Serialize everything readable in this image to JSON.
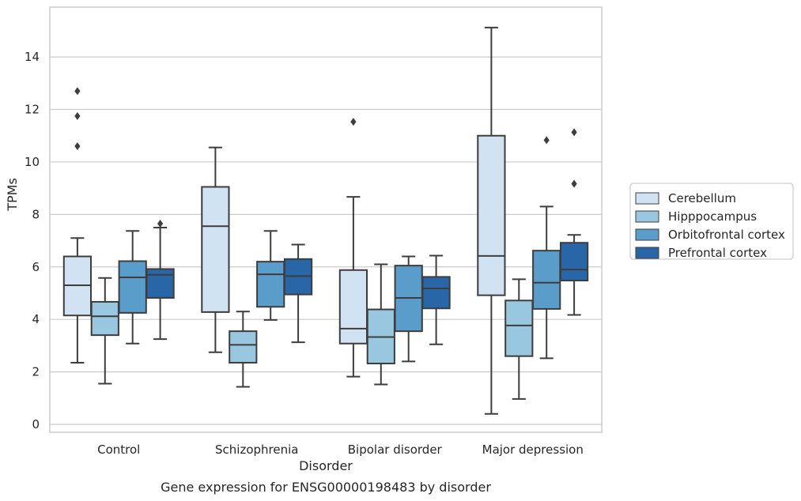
{
  "chart_data": {
    "type": "box",
    "caption": "Gene expression for ENSG00000198483 by disorder",
    "xlabel": "Disorder",
    "ylabel": "TPMs",
    "ylim": [
      -0.3,
      15.9
    ],
    "yticks": [
      0,
      2,
      4,
      6,
      8,
      10,
      12,
      14
    ],
    "grid": "horizontal",
    "legend_position": "right",
    "categories": [
      "Control",
      "Schizophrenia",
      "Bipolar disorder",
      "Major depression"
    ],
    "series": [
      {
        "name": "Cerebellum",
        "color": "#d1e2f2",
        "boxes": [
          {
            "whislo": 2.35,
            "q1": 4.15,
            "med": 5.3,
            "q3": 6.4,
            "whishi": 7.1,
            "fliers": [
              10.6,
              11.75,
              12.7
            ]
          },
          {
            "whislo": 2.75,
            "q1": 4.28,
            "med": 7.55,
            "q3": 9.05,
            "whishi": 10.55,
            "fliers": []
          },
          {
            "whislo": 1.82,
            "q1": 3.08,
            "med": 3.65,
            "q3": 5.88,
            "whishi": 8.67,
            "fliers": [
              11.53
            ]
          },
          {
            "whislo": 0.4,
            "q1": 4.92,
            "med": 6.42,
            "q3": 11.0,
            "whishi": 15.12,
            "fliers": []
          }
        ]
      },
      {
        "name": "Hipppocampus",
        "color": "#9ac7e0",
        "boxes": [
          {
            "whislo": 1.55,
            "q1": 3.4,
            "med": 4.12,
            "q3": 4.67,
            "whishi": 5.58,
            "fliers": []
          },
          {
            "whislo": 1.43,
            "q1": 2.35,
            "med": 3.03,
            "q3": 3.55,
            "whishi": 4.3,
            "fliers": []
          },
          {
            "whislo": 1.52,
            "q1": 2.32,
            "med": 3.33,
            "q3": 4.38,
            "whishi": 6.1,
            "fliers": []
          },
          {
            "whislo": 0.97,
            "q1": 2.6,
            "med": 3.77,
            "q3": 4.72,
            "whishi": 5.53,
            "fliers": []
          }
        ]
      },
      {
        "name": "Orbitofrontal cortex",
        "color": "#5a9dcb",
        "boxes": [
          {
            "whislo": 3.08,
            "q1": 4.25,
            "med": 5.6,
            "q3": 6.22,
            "whishi": 7.37,
            "fliers": []
          },
          {
            "whislo": 3.98,
            "q1": 4.48,
            "med": 5.72,
            "q3": 6.2,
            "whishi": 7.37,
            "fliers": []
          },
          {
            "whislo": 2.4,
            "q1": 3.55,
            "med": 4.82,
            "q3": 6.05,
            "whishi": 6.4,
            "fliers": []
          },
          {
            "whislo": 2.52,
            "q1": 4.4,
            "med": 5.4,
            "q3": 6.62,
            "whishi": 8.3,
            "fliers": [
              10.83
            ]
          }
        ]
      },
      {
        "name": "Prefrontal cortex",
        "color": "#2866a8",
        "boxes": [
          {
            "whislo": 3.25,
            "q1": 4.82,
            "med": 5.7,
            "q3": 5.92,
            "whishi": 7.5,
            "fliers": [
              7.65
            ]
          },
          {
            "whislo": 3.13,
            "q1": 4.95,
            "med": 5.65,
            "q3": 6.3,
            "whishi": 6.85,
            "fliers": []
          },
          {
            "whislo": 3.05,
            "q1": 4.42,
            "med": 5.18,
            "q3": 5.62,
            "whishi": 6.43,
            "fliers": []
          },
          {
            "whislo": 4.17,
            "q1": 5.48,
            "med": 5.9,
            "q3": 6.92,
            "whishi": 7.22,
            "fliers": [
              9.17,
              11.13
            ]
          }
        ]
      }
    ]
  }
}
